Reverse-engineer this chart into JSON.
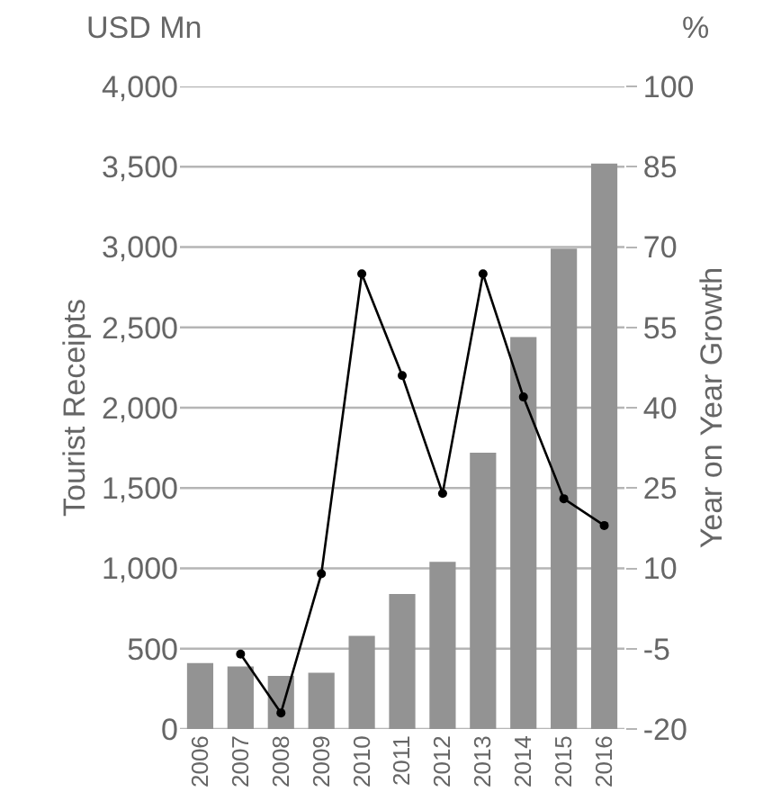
{
  "chart_data": {
    "type": "bar",
    "title": "USD Mn",
    "annotations": [
      "%"
    ],
    "ylabel": "Tourist Receipts",
    "y2label": "Year on Year Growth",
    "categories": [
      "2006",
      "2007",
      "2008",
      "2009",
      "2010",
      "2011",
      "2012",
      "2013",
      "2014",
      "2015",
      "2016"
    ],
    "series": [
      {
        "color": "#939393",
        "values": [
          410,
          390,
          330,
          350,
          580,
          840,
          1040,
          1720,
          2440,
          2990,
          3520
        ]
      },
      {
        "type": "line",
        "axis": "y2",
        "color": "#000000",
        "marker": "circle",
        "values": [
          null,
          -6,
          -17,
          9,
          65,
          46,
          24,
          65,
          42,
          23,
          18
        ]
      }
    ],
    "ylim": [
      0,
      4000
    ],
    "yticks": [
      0,
      {
        "value": 500,
        "label": "500"
      },
      {
        "value": 1000,
        "label": "1,000"
      },
      {
        "value": 1500,
        "label": "1,500"
      },
      {
        "value": 2000,
        "label": "2,000"
      },
      {
        "value": 2500,
        "label": "2,500"
      },
      {
        "value": 3000,
        "label": "3,000"
      },
      {
        "value": 3500,
        "label": "3,500"
      },
      {
        "value": 4000,
        "label": "4,000"
      }
    ],
    "y2lim": [
      -20,
      100
    ],
    "y2ticks": [
      -20,
      -5,
      10,
      25,
      40,
      55,
      70,
      85,
      100
    ],
    "grid": "y",
    "legend": false
  }
}
